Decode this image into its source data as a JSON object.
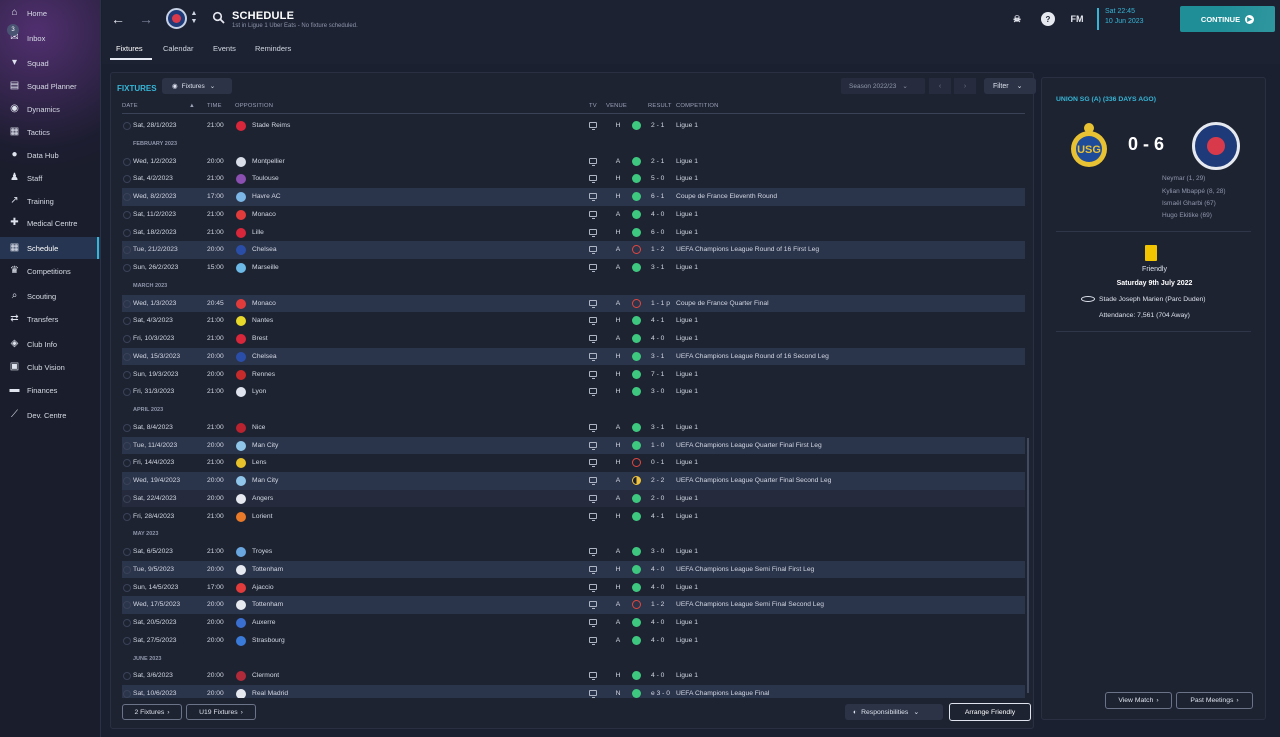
{
  "sidebar": {
    "items": [
      {
        "label": "Home",
        "icon": "home-icon",
        "glyph": "⌂"
      },
      {
        "label": "Inbox",
        "icon": "inbox-icon",
        "glyph": "✉",
        "badge": "3"
      },
      {
        "label": "Squad",
        "icon": "shirt-icon",
        "glyph": "▾"
      },
      {
        "label": "Squad Planner",
        "icon": "planner-icon",
        "glyph": "▤"
      },
      {
        "label": "Dynamics",
        "icon": "dynamics-icon",
        "glyph": "◉"
      },
      {
        "label": "Tactics",
        "icon": "tactics-icon",
        "glyph": "▦"
      },
      {
        "label": "Data Hub",
        "icon": "data-hub-icon",
        "glyph": "●"
      },
      {
        "label": "Staff",
        "icon": "staff-icon",
        "glyph": "♟"
      },
      {
        "label": "Training",
        "icon": "training-icon",
        "glyph": "↗"
      },
      {
        "label": "Medical Centre",
        "icon": "medical-icon",
        "glyph": "✚"
      },
      {
        "label": "Schedule",
        "icon": "schedule-icon",
        "glyph": "▦"
      },
      {
        "label": "Competitions",
        "icon": "trophy-icon",
        "glyph": "♛"
      },
      {
        "label": "Scouting",
        "icon": "scouting-icon",
        "glyph": "⌕"
      },
      {
        "label": "Transfers",
        "icon": "transfers-icon",
        "glyph": "⇄"
      },
      {
        "label": "Club Info",
        "icon": "club-info-icon",
        "glyph": "◈"
      },
      {
        "label": "Club Vision",
        "icon": "club-vision-icon",
        "glyph": "▣"
      },
      {
        "label": "Finances",
        "icon": "finances-icon",
        "glyph": "▬"
      },
      {
        "label": "Dev. Centre",
        "icon": "dev-centre-icon",
        "glyph": "⟋"
      }
    ]
  },
  "header": {
    "title": "SCHEDULE",
    "subtitle": "1st in Ligue 1 Uber Eats - No fixture scheduled.",
    "tabs": [
      "Fixtures",
      "Calendar",
      "Events",
      "Reminders"
    ],
    "fm_label": "FM",
    "time": "Sat 22:45",
    "date": "10 Jun 2023",
    "continue_label": "CONTINUE"
  },
  "fixtures": {
    "heading": "FIXTURES",
    "dropdown_label": "Fixtures",
    "season": "Season 2022/23",
    "filter_label": "Filter",
    "columns": {
      "date": "DATE",
      "time": "TIME",
      "opposition": "OPPOSITION",
      "tv": "TV",
      "venue": "VENUE",
      "result": "RESULT",
      "competition": "COMPETITION"
    },
    "rows": [
      {
        "date": "Sat, 28/1/2023",
        "time": "21:00",
        "opp": "Stade Reims",
        "venue": "H",
        "res": "win",
        "score": "2 - 1",
        "comp": "Ligue 1",
        "badge": "#d8263a"
      },
      {
        "month": "FEBRUARY 2023"
      },
      {
        "date": "Wed, 1/2/2023",
        "time": "20:00",
        "opp": "Montpellier",
        "venue": "A",
        "res": "win",
        "score": "2 - 1",
        "comp": "Ligue 1",
        "badge": "#d8dde8"
      },
      {
        "date": "Sat, 4/2/2023",
        "time": "21:00",
        "opp": "Toulouse",
        "venue": "H",
        "res": "win",
        "score": "5 - 0",
        "comp": "Ligue 1",
        "badge": "#8a4fb0"
      },
      {
        "date": "Wed, 8/2/2023",
        "time": "17:00",
        "opp": "Havre AC",
        "venue": "H",
        "res": "win",
        "score": "6 - 1",
        "comp": "Coupe de France Eleventh Round",
        "hl": true,
        "badge": "#7bb6e6"
      },
      {
        "date": "Sat, 11/2/2023",
        "time": "21:00",
        "opp": "Monaco",
        "venue": "A",
        "res": "win",
        "score": "4 - 0",
        "comp": "Ligue 1",
        "badge": "#e23b3b"
      },
      {
        "date": "Sat, 18/2/2023",
        "time": "21:00",
        "opp": "Lille",
        "venue": "H",
        "res": "win",
        "score": "6 - 0",
        "comp": "Ligue 1",
        "badge": "#d8263a"
      },
      {
        "date": "Tue, 21/2/2023",
        "time": "20:00",
        "opp": "Chelsea",
        "venue": "A",
        "res": "loss",
        "score": "1 - 2",
        "comp": "UEFA Champions League Round of 16 First Leg",
        "hl": true,
        "badge": "#2a4ea8"
      },
      {
        "date": "Sun, 26/2/2023",
        "time": "15:00",
        "opp": "Marseille",
        "venue": "A",
        "res": "win",
        "score": "3 - 1",
        "comp": "Ligue 1",
        "badge": "#6cb8e6"
      },
      {
        "month": "MARCH 2023"
      },
      {
        "date": "Wed, 1/3/2023",
        "time": "20:45",
        "opp": "Monaco",
        "venue": "A",
        "res": "loss",
        "score": "1 - 1 p",
        "comp": "Coupe de France Quarter Final",
        "hl": true,
        "badge": "#e23b3b"
      },
      {
        "date": "Sat, 4/3/2023",
        "time": "21:00",
        "opp": "Nantes",
        "venue": "H",
        "res": "win",
        "score": "4 - 1",
        "comp": "Ligue 1",
        "badge": "#e8d82a"
      },
      {
        "date": "Fri, 10/3/2023",
        "time": "21:00",
        "opp": "Brest",
        "venue": "A",
        "res": "win",
        "score": "4 - 0",
        "comp": "Ligue 1",
        "badge": "#d8263a"
      },
      {
        "date": "Wed, 15/3/2023",
        "time": "20:00",
        "opp": "Chelsea",
        "venue": "H",
        "res": "win",
        "score": "3 - 1",
        "comp": "UEFA Champions League Round of 16 Second Leg",
        "hl": true,
        "badge": "#2a4ea8"
      },
      {
        "date": "Sun, 19/3/2023",
        "time": "20:00",
        "opp": "Rennes",
        "venue": "H",
        "res": "win",
        "score": "7 - 1",
        "comp": "Ligue 1",
        "badge": "#c62b2b"
      },
      {
        "date": "Fri, 31/3/2023",
        "time": "21:00",
        "opp": "Lyon",
        "venue": "H",
        "res": "win",
        "score": "3 - 0",
        "comp": "Ligue 1",
        "badge": "#dfe3ee"
      },
      {
        "month": "APRIL 2023"
      },
      {
        "date": "Sat, 8/4/2023",
        "time": "21:00",
        "opp": "Nice",
        "venue": "A",
        "res": "win",
        "score": "3 - 1",
        "comp": "Ligue 1",
        "badge": "#b8232f"
      },
      {
        "date": "Tue, 11/4/2023",
        "time": "20:00",
        "opp": "Man City",
        "venue": "H",
        "res": "win",
        "score": "1 - 0",
        "comp": "UEFA Champions League Quarter Final First Leg",
        "hl": true,
        "badge": "#8fc6ea"
      },
      {
        "date": "Fri, 14/4/2023",
        "time": "21:00",
        "opp": "Lens",
        "venue": "H",
        "res": "loss",
        "score": "0 - 1",
        "comp": "Ligue 1",
        "badge": "#e8c22a"
      },
      {
        "date": "Wed, 19/4/2023",
        "time": "20:00",
        "opp": "Man City",
        "venue": "A",
        "res": "draw",
        "score": "2 - 2",
        "comp": "UEFA Champions League Quarter Final Second Leg",
        "hl": true,
        "badge": "#8fc6ea"
      },
      {
        "date": "Sat, 22/4/2023",
        "time": "20:00",
        "opp": "Angers",
        "venue": "A",
        "res": "win",
        "score": "2 - 0",
        "comp": "Ligue 1",
        "badge": "#e6e9f0",
        "hl2": true
      },
      {
        "date": "Fri, 28/4/2023",
        "time": "21:00",
        "opp": "Lorient",
        "venue": "H",
        "res": "win",
        "score": "4 - 1",
        "comp": "Ligue 1",
        "badge": "#e87a2a"
      },
      {
        "month": "MAY 2023"
      },
      {
        "date": "Sat, 6/5/2023",
        "time": "21:00",
        "opp": "Troyes",
        "venue": "A",
        "res": "win",
        "score": "3 - 0",
        "comp": "Ligue 1",
        "badge": "#6aa6e0"
      },
      {
        "date": "Tue, 9/5/2023",
        "time": "20:00",
        "opp": "Tottenham",
        "venue": "H",
        "res": "win",
        "score": "4 - 0",
        "comp": "UEFA Champions League Semi Final First Leg",
        "hl": true,
        "badge": "#e6e9f0"
      },
      {
        "date": "Sun, 14/5/2023",
        "time": "17:00",
        "opp": "Ajaccio",
        "venue": "H",
        "res": "win",
        "score": "4 - 0",
        "comp": "Ligue 1",
        "badge": "#e23b3b"
      },
      {
        "date": "Wed, 17/5/2023",
        "time": "20:00",
        "opp": "Tottenham",
        "venue": "A",
        "res": "loss",
        "score": "1 - 2",
        "comp": "UEFA Champions League Semi Final Second Leg",
        "hl": true,
        "badge": "#e6e9f0"
      },
      {
        "date": "Sat, 20/5/2023",
        "time": "20:00",
        "opp": "Auxerre",
        "venue": "A",
        "res": "win",
        "score": "4 - 0",
        "comp": "Ligue 1",
        "badge": "#3a6fd0"
      },
      {
        "date": "Sat, 27/5/2023",
        "time": "20:00",
        "opp": "Strasbourg",
        "venue": "A",
        "res": "win",
        "score": "4 - 0",
        "comp": "Ligue 1",
        "badge": "#3a7ad8"
      },
      {
        "month": "JUNE 2023"
      },
      {
        "date": "Sat, 3/6/2023",
        "time": "20:00",
        "opp": "Clermont",
        "venue": "H",
        "res": "win",
        "score": "4 - 0",
        "comp": "Ligue 1",
        "badge": "#b02a3a"
      },
      {
        "date": "Sat, 10/6/2023",
        "time": "20:00",
        "opp": "Real Madrid",
        "venue": "N",
        "res": "win",
        "score": "e 3 - 0",
        "comp": "UEFA Champions League Final",
        "hl": true,
        "badge": "#e6e9f0"
      }
    ],
    "bottom_buttons": {
      "two_fixtures": "2 Fixtures",
      "u19_fixtures": "U19 Fixtures",
      "responsibilities": "Responsibilities",
      "arrange_friendly": "Arrange Friendly"
    }
  },
  "match_panel": {
    "heading": "UNION SG (A) (336 DAYS AGO)",
    "score": "0 - 6",
    "scorers": [
      "Neymar (1, 29)",
      "Kylian Mbappé (8, 28)",
      "Ismaël Gharbi (67)",
      "Hugo Ekitike (69)"
    ],
    "competition": "Friendly",
    "date": "Saturday 9th July 2022",
    "stadium": "Stade Joseph Marien (Parc Duden)",
    "attendance": "Attendance: 7,561 (704 Away)",
    "view_match_label": "View Match",
    "past_meetings_label": "Past Meetings"
  }
}
